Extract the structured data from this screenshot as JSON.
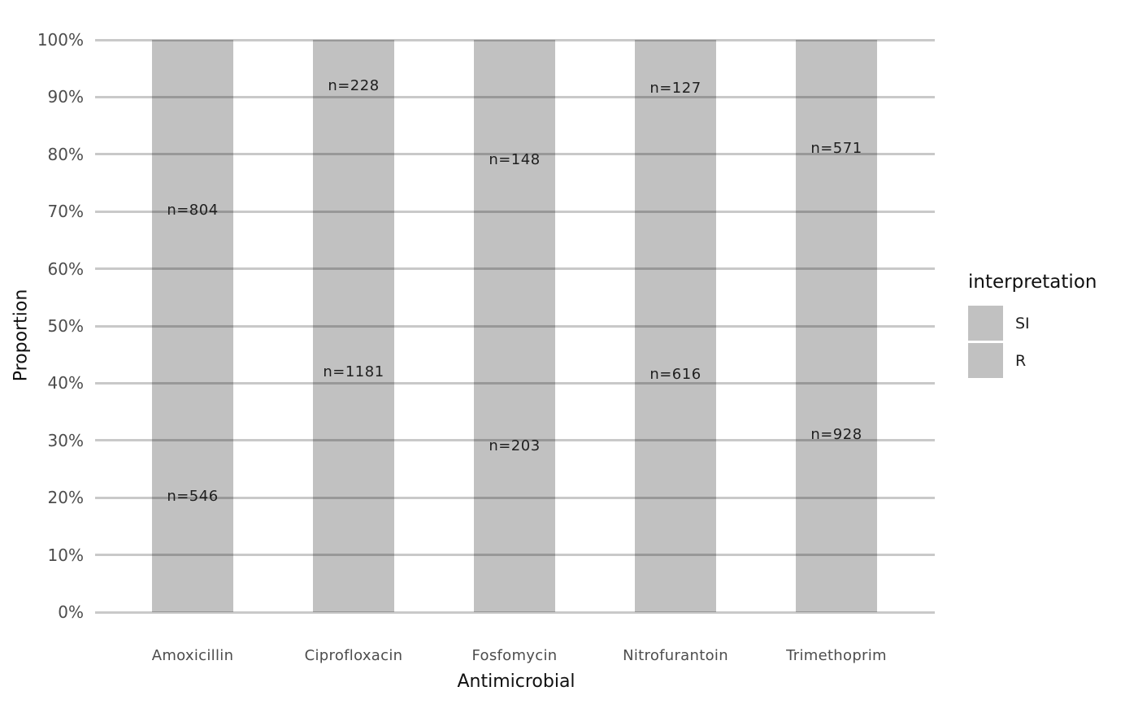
{
  "chart_data": {
    "type": "bar",
    "variant": "stacked-100-percent",
    "title": "",
    "xlabel": "Antimicrobial",
    "ylabel": "Proportion",
    "categories": [
      "Amoxicillin",
      "Ciprofloxacin",
      "Fosfomycin",
      "Nitrofurantoin",
      "Trimethoprim"
    ],
    "series": [
      {
        "name": "SI",
        "counts": [
          804,
          228,
          148,
          127,
          571
        ],
        "labels": [
          "n=804",
          "n=228",
          "n=148",
          "n=127",
          "n=571"
        ],
        "color": "#c1c1c1"
      },
      {
        "name": "R",
        "counts": [
          546,
          1181,
          203,
          616,
          928
        ],
        "labels": [
          "n=546",
          "n=1181",
          "n=203",
          "n=616",
          "n=928"
        ],
        "color": "#c1c1c1"
      }
    ],
    "proportions_percent": {
      "SI": [
        59.6,
        16.2,
        42.2,
        17.1,
        38.1
      ],
      "R": [
        40.4,
        83.8,
        57.8,
        82.9,
        61.9
      ]
    },
    "y_ticks": [
      "0%",
      "10%",
      "20%",
      "30%",
      "40%",
      "50%",
      "60%",
      "70%",
      "80%",
      "90%",
      "100%"
    ],
    "ylim": [
      0,
      100
    ],
    "grid": "horizontal-only",
    "legend": {
      "title": "interpretation",
      "position": "right",
      "entries": [
        {
          "label": "SI",
          "color": "#c1c1c1"
        },
        {
          "label": "R",
          "color": "#c1c1c1"
        }
      ]
    },
    "colors": {
      "bar": "#c1c1c1",
      "gridline": "rgba(0,0,0,0.21)",
      "tick_text": "#4d4d4d",
      "axis_title_text": "#101010",
      "bar_label_text": "#1f1f1f",
      "background": "#ffffff"
    }
  }
}
